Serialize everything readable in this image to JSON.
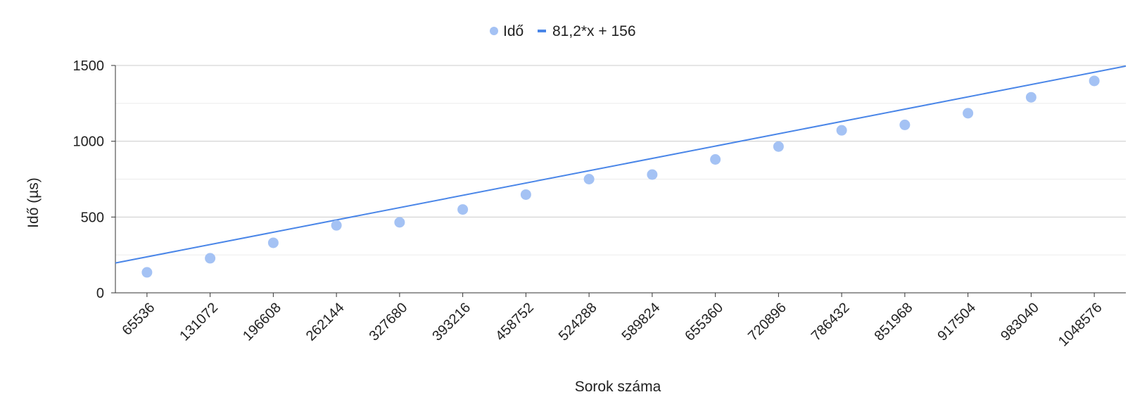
{
  "chart_data": {
    "type": "scatter",
    "title": "",
    "xlabel": "Sorok száma",
    "ylabel": "Idő (µs)",
    "categories": [
      "65536",
      "131072",
      "196608",
      "262144",
      "327680",
      "393216",
      "458752",
      "524288",
      "589824",
      "655360",
      "720896",
      "786432",
      "851968",
      "917504",
      "983040",
      "1048576"
    ],
    "ylim": [
      0,
      1500
    ],
    "yticks": [
      "0",
      "500",
      "1000",
      "1500"
    ],
    "grid": "horizontal major and minor",
    "legend_position": "top",
    "series": [
      {
        "name": "Idő",
        "kind": "scatter",
        "color": "#a4c2f4",
        "values": [
          135,
          228,
          330,
          445,
          465,
          550,
          648,
          750,
          780,
          880,
          965,
          1072,
          1108,
          1185,
          1290,
          1398
        ]
      },
      {
        "name": "81,2*x + 156",
        "kind": "trendline",
        "color": "#4a86e8",
        "slope": 81.2,
        "intercept": 156,
        "x_index_start": 0.5,
        "x_index_end": 16.5
      }
    ]
  }
}
